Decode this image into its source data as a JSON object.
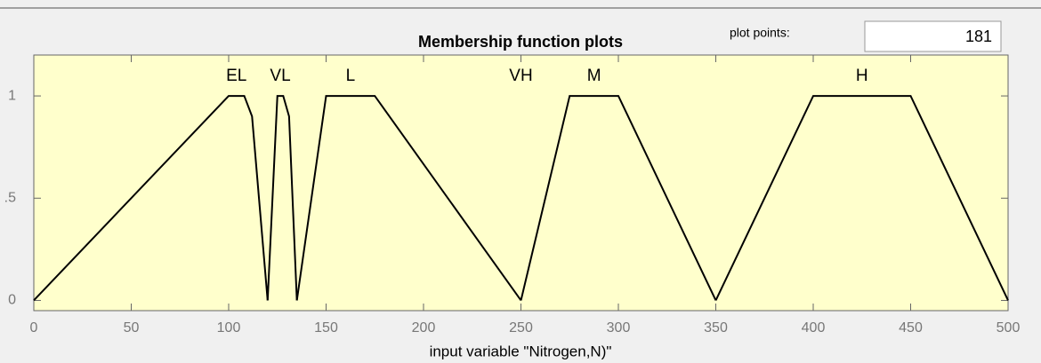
{
  "chart_data": {
    "type": "line",
    "title": "Membership function plots",
    "xlabel": "input variable \"Nitrogen,N)\"",
    "plot_points_label": "plot points:",
    "plot_points_value": "181",
    "background": "#ffffcc",
    "xlim": [
      0,
      500
    ],
    "xticks": [
      0,
      50,
      100,
      150,
      200,
      250,
      300,
      350,
      400,
      450,
      500
    ],
    "ylim": [
      -0.05,
      1.2
    ],
    "yticks": [
      0,
      {
        "value": 0.5,
        "label": ".5"
      },
      1
    ],
    "grid": false,
    "series": [
      {
        "name": "EL",
        "color": "#000000",
        "x": [
          0,
          100,
          108,
          112,
          120
        ],
        "values": [
          0,
          1,
          1,
          0.9,
          0
        ]
      },
      {
        "name": "VL",
        "color": "#000000",
        "x": [
          120,
          125,
          128,
          131,
          135
        ],
        "values": [
          0,
          1,
          1,
          0.9,
          0
        ]
      },
      {
        "name": "L",
        "color": "#000000",
        "x": [
          135,
          150,
          175,
          250
        ],
        "values": [
          0,
          1,
          1,
          0
        ]
      },
      {
        "name": "M",
        "color": "#000000",
        "x": [
          250,
          275,
          300,
          350
        ],
        "values": [
          0,
          1,
          1,
          0
        ]
      },
      {
        "name": "H",
        "color": "#000000",
        "x": [
          350,
          400,
          450,
          500
        ],
        "values": [
          0,
          1,
          1,
          0
        ]
      }
    ],
    "annotations": [
      {
        "text": "VH",
        "x": 250
      }
    ]
  }
}
